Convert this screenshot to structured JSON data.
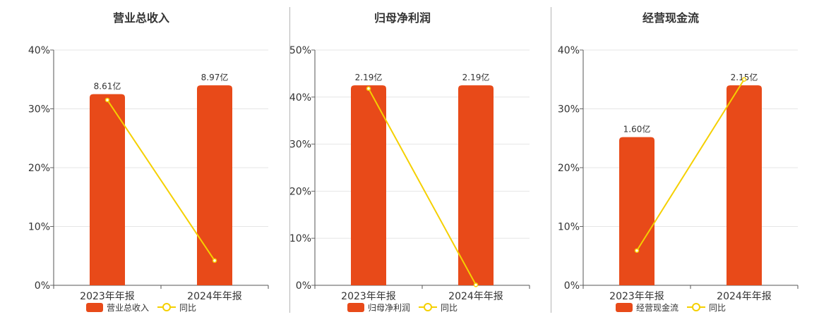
{
  "chart_data": [
    {
      "type": "bar",
      "title": "营业总收入",
      "categories": [
        "2023年年报",
        "2024年年报"
      ],
      "yticks": [
        "0%",
        "10%",
        "20%",
        "30%",
        "40%"
      ],
      "ylim": [
        0,
        40
      ],
      "grid": true,
      "legend_position": "bottom",
      "series": [
        {
          "name": "营业总收入",
          "kind": "bar",
          "values": [
            32.5,
            34.0
          ],
          "labels": [
            "8.61亿",
            "8.97亿"
          ],
          "color": "#e84a19"
        },
        {
          "name": "同比",
          "kind": "line",
          "values": [
            31.5,
            4.2
          ],
          "color": "#f5d000"
        }
      ]
    },
    {
      "type": "bar",
      "title": "归母净利润",
      "categories": [
        "2023年年报",
        "2024年年报"
      ],
      "yticks": [
        "0%",
        "10%",
        "20%",
        "30%",
        "40%",
        "50%"
      ],
      "ylim": [
        0,
        50
      ],
      "grid": true,
      "legend_position": "bottom",
      "series": [
        {
          "name": "归母净利润",
          "kind": "bar",
          "values": [
            42.5,
            42.5
          ],
          "labels": [
            "2.19亿",
            "2.19亿"
          ],
          "color": "#e84a19"
        },
        {
          "name": "同比",
          "kind": "line",
          "values": [
            41.8,
            0.1
          ],
          "color": "#f5d000"
        }
      ]
    },
    {
      "type": "bar",
      "title": "经营现金流",
      "categories": [
        "2023年年报",
        "2024年年报"
      ],
      "yticks": [
        "0%",
        "10%",
        "20%",
        "30%",
        "40%"
      ],
      "ylim": [
        0,
        40
      ],
      "grid": true,
      "legend_position": "bottom",
      "series": [
        {
          "name": "经营现金流",
          "kind": "bar",
          "values": [
            25.2,
            34.0
          ],
          "labels": [
            "1.60亿",
            "2.15亿"
          ],
          "color": "#e84a19"
        },
        {
          "name": "同比",
          "kind": "line",
          "values": [
            5.9,
            35.0
          ],
          "color": "#f5d000"
        }
      ]
    }
  ]
}
